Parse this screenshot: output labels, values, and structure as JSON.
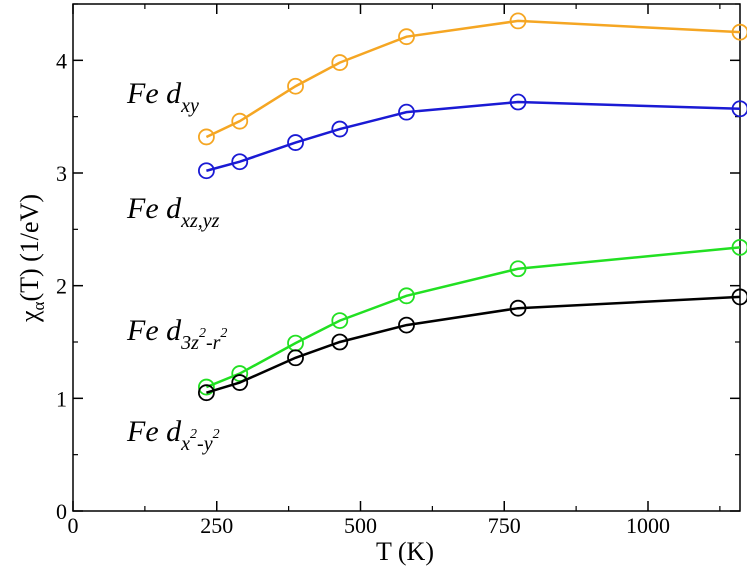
{
  "chart_data": {
    "type": "line",
    "title": "",
    "xlabel": "T (K)",
    "ylabel_main": "χ",
    "ylabel_sub": "α",
    "ylabel_tail": "(T)  (1/eV)",
    "xlim": [
      0,
      1160
    ],
    "ylim": [
      0,
      4.5
    ],
    "xticks": [
      0,
      250,
      500,
      750,
      1000
    ],
    "yticks": [
      0,
      1,
      2,
      3,
      4
    ],
    "grid": false,
    "x": [
      232,
      290,
      387,
      464,
      580,
      774,
      1160
    ],
    "series": [
      {
        "name": "Fe dxy",
        "color": "#f5a623",
        "values": [
          3.32,
          3.46,
          3.77,
          3.98,
          4.21,
          4.35,
          4.25
        ]
      },
      {
        "name": "Fe dxz,yz",
        "color": "#1a1ad4",
        "values": [
          3.02,
          3.1,
          3.27,
          3.39,
          3.54,
          3.63,
          3.57
        ]
      },
      {
        "name": "Fe d3z2-r2",
        "color": "#22e022",
        "values": [
          1.1,
          1.22,
          1.49,
          1.69,
          1.91,
          2.15,
          2.34
        ]
      },
      {
        "name": "Fe dx2-y2",
        "color": "#000000",
        "values": [
          1.05,
          1.14,
          1.36,
          1.5,
          1.65,
          1.8,
          1.9
        ]
      }
    ],
    "annotations": [
      {
        "id": "dxy",
        "prefix": "Fe d",
        "sub": "xy",
        "sup1": "",
        "mid": "",
        "sup2": ""
      },
      {
        "id": "dxzyz",
        "prefix": "Fe d",
        "sub": "xz,yz",
        "sup1": "",
        "mid": "",
        "sup2": ""
      },
      {
        "id": "d3z2",
        "prefix": "Fe d",
        "sub": "3z",
        "sup1": "2",
        "mid": "-r",
        "sup2": "2"
      },
      {
        "id": "dx2y2",
        "prefix": "Fe d",
        "sub": "x",
        "sup1": "2",
        "mid": "-y",
        "sup2": "2"
      }
    ]
  }
}
